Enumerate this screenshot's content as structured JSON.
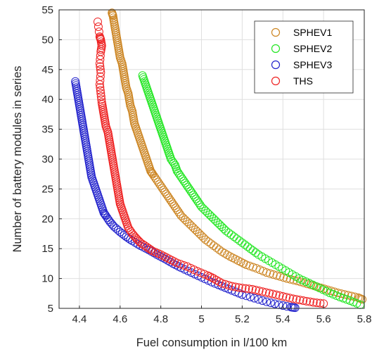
{
  "chart_data": {
    "type": "scatter",
    "title": "",
    "xlabel": "Fuel consumption in l/100 km",
    "ylabel": "Number of battery modules in series",
    "xlim": [
      4.3,
      5.8
    ],
    "ylim": [
      5,
      55
    ],
    "xticks": [
      4.4,
      4.6,
      4.8,
      5,
      5.2,
      5.4,
      5.6,
      5.8
    ],
    "xtick_labels": [
      "4.4",
      "4.6",
      "4.8",
      "5",
      "5.2",
      "5.4",
      "5.6",
      "5.8"
    ],
    "yticks": [
      5,
      10,
      15,
      20,
      25,
      30,
      35,
      40,
      45,
      50,
      55
    ],
    "ytick_labels": [
      "5",
      "10",
      "15",
      "20",
      "25",
      "30",
      "35",
      "40",
      "45",
      "50",
      "55"
    ],
    "grid": true,
    "legend_position": "top-right",
    "marker": "open-circle",
    "series": [
      {
        "name": "SPHEV1",
        "color": "#cc8522",
        "points": [
          [
            4.56,
            54.5
          ],
          [
            4.565,
            54
          ],
          [
            4.57,
            53
          ],
          [
            4.575,
            52
          ],
          [
            4.58,
            51
          ],
          [
            4.585,
            50
          ],
          [
            4.59,
            49
          ],
          [
            4.595,
            48
          ],
          [
            4.6,
            47
          ],
          [
            4.61,
            46
          ],
          [
            4.615,
            45
          ],
          [
            4.62,
            44
          ],
          [
            4.625,
            43
          ],
          [
            4.63,
            42
          ],
          [
            4.64,
            41
          ],
          [
            4.645,
            40
          ],
          [
            4.65,
            39
          ],
          [
            4.66,
            38
          ],
          [
            4.665,
            37
          ],
          [
            4.67,
            36
          ],
          [
            4.68,
            35
          ],
          [
            4.69,
            34
          ],
          [
            4.7,
            33
          ],
          [
            4.71,
            32
          ],
          [
            4.72,
            31
          ],
          [
            4.73,
            30
          ],
          [
            4.74,
            29
          ],
          [
            4.75,
            28
          ],
          [
            4.76,
            27.5
          ],
          [
            4.78,
            26.5
          ],
          [
            4.8,
            25.5
          ],
          [
            4.82,
            24.5
          ],
          [
            4.84,
            23.5
          ],
          [
            4.86,
            22.5
          ],
          [
            4.88,
            21.5
          ],
          [
            4.9,
            20.5
          ],
          [
            4.93,
            19.5
          ],
          [
            4.96,
            18.5
          ],
          [
            4.99,
            17.5
          ],
          [
            5.02,
            16.5
          ],
          [
            5.06,
            15.5
          ],
          [
            5.1,
            14.5
          ],
          [
            5.14,
            13.7
          ],
          [
            5.18,
            13
          ],
          [
            5.22,
            12.3
          ],
          [
            5.27,
            11.7
          ],
          [
            5.32,
            11
          ],
          [
            5.37,
            10.5
          ],
          [
            5.42,
            10
          ],
          [
            5.47,
            9.6
          ],
          [
            5.52,
            9.1
          ],
          [
            5.57,
            8.6
          ],
          [
            5.62,
            8.1
          ],
          [
            5.67,
            7.6
          ],
          [
            5.72,
            7.2
          ],
          [
            5.77,
            6.8
          ],
          [
            5.79,
            6.5
          ]
        ]
      },
      {
        "name": "SPHEV2",
        "color": "#22e622",
        "points": [
          [
            4.71,
            44
          ],
          [
            4.72,
            43
          ],
          [
            4.73,
            42
          ],
          [
            4.74,
            41
          ],
          [
            4.75,
            40
          ],
          [
            4.76,
            39
          ],
          [
            4.77,
            38
          ],
          [
            4.78,
            37
          ],
          [
            4.79,
            36
          ],
          [
            4.8,
            35
          ],
          [
            4.81,
            34
          ],
          [
            4.82,
            33
          ],
          [
            4.83,
            32
          ],
          [
            4.84,
            31
          ],
          [
            4.85,
            30
          ],
          [
            4.87,
            29
          ],
          [
            4.88,
            28
          ],
          [
            4.9,
            27
          ],
          [
            4.92,
            26
          ],
          [
            4.94,
            25
          ],
          [
            4.96,
            24
          ],
          [
            4.98,
            23
          ],
          [
            5,
            22
          ],
          [
            5.03,
            21
          ],
          [
            5.06,
            20
          ],
          [
            5.09,
            19
          ],
          [
            5.12,
            18
          ],
          [
            5.16,
            17
          ],
          [
            5.2,
            16
          ],
          [
            5.24,
            15
          ],
          [
            5.28,
            14
          ],
          [
            5.33,
            13
          ],
          [
            5.38,
            12
          ],
          [
            5.43,
            11
          ],
          [
            5.48,
            10
          ],
          [
            5.53,
            9.2
          ],
          [
            5.58,
            8.4
          ],
          [
            5.63,
            7.6
          ],
          [
            5.68,
            6.9
          ],
          [
            5.73,
            6.3
          ],
          [
            5.78,
            5.6
          ]
        ]
      },
      {
        "name": "SPHEV3",
        "color": "#2222cc",
        "points": [
          [
            4.38,
            43
          ],
          [
            4.385,
            42
          ],
          [
            4.39,
            41
          ],
          [
            4.395,
            40
          ],
          [
            4.4,
            39
          ],
          [
            4.405,
            38
          ],
          [
            4.41,
            37
          ],
          [
            4.415,
            36
          ],
          [
            4.42,
            35
          ],
          [
            4.425,
            34
          ],
          [
            4.43,
            33
          ],
          [
            4.435,
            32
          ],
          [
            4.44,
            31
          ],
          [
            4.445,
            30
          ],
          [
            4.45,
            29
          ],
          [
            4.455,
            28
          ],
          [
            4.46,
            27
          ],
          [
            4.47,
            26
          ],
          [
            4.48,
            25
          ],
          [
            4.49,
            24
          ],
          [
            4.5,
            23
          ],
          [
            4.51,
            22
          ],
          [
            4.52,
            21
          ],
          [
            4.53,
            20.5
          ],
          [
            4.55,
            19.5
          ],
          [
            4.57,
            18.7
          ],
          [
            4.6,
            17.8
          ],
          [
            4.63,
            17
          ],
          [
            4.66,
            16.3
          ],
          [
            4.7,
            15.5
          ],
          [
            4.74,
            14.8
          ],
          [
            4.78,
            14
          ],
          [
            4.82,
            13.3
          ],
          [
            4.86,
            12.5
          ],
          [
            4.9,
            11.8
          ],
          [
            4.95,
            11
          ],
          [
            5,
            10.2
          ],
          [
            5.05,
            9.4
          ],
          [
            5.1,
            8.7
          ],
          [
            5.15,
            8
          ],
          [
            5.2,
            7.3
          ],
          [
            5.26,
            6.7
          ],
          [
            5.32,
            6.1
          ],
          [
            5.38,
            5.6
          ],
          [
            5.44,
            5.2
          ],
          [
            5.46,
            5.1
          ]
        ]
      },
      {
        "name": "THS",
        "color": "#ee2222",
        "points": [
          [
            4.49,
            53
          ],
          [
            4.5,
            50.5
          ],
          [
            4.505,
            50
          ],
          [
            4.51,
            49
          ],
          [
            4.505,
            48
          ],
          [
            4.5,
            46
          ],
          [
            4.505,
            44.5
          ],
          [
            4.5,
            42.5
          ],
          [
            4.505,
            41
          ],
          [
            4.51,
            39.5
          ],
          [
            4.515,
            38.5
          ],
          [
            4.52,
            37.5
          ],
          [
            4.525,
            36.5
          ],
          [
            4.53,
            35.5
          ],
          [
            4.54,
            34.5
          ],
          [
            4.545,
            33.5
          ],
          [
            4.55,
            32.5
          ],
          [
            4.555,
            31.5
          ],
          [
            4.56,
            30.5
          ],
          [
            4.565,
            29.5
          ],
          [
            4.57,
            28.5
          ],
          [
            4.575,
            27.5
          ],
          [
            4.58,
            26.5
          ],
          [
            4.585,
            25.5
          ],
          [
            4.59,
            24.5
          ],
          [
            4.595,
            23.5
          ],
          [
            4.6,
            22.5
          ],
          [
            4.61,
            21.5
          ],
          [
            4.62,
            20.5
          ],
          [
            4.63,
            19.5
          ],
          [
            4.64,
            18.5
          ],
          [
            4.66,
            17.5
          ],
          [
            4.68,
            16.7
          ],
          [
            4.7,
            16
          ],
          [
            4.73,
            15.3
          ],
          [
            4.76,
            14.6
          ],
          [
            4.8,
            14
          ],
          [
            4.84,
            13.3
          ],
          [
            4.88,
            12.6
          ],
          [
            4.93,
            12
          ],
          [
            4.98,
            11.2
          ],
          [
            5.03,
            10.5
          ],
          [
            5.06,
            10
          ],
          [
            5.1,
            9.2
          ],
          [
            5.15,
            8.7
          ],
          [
            5.2,
            8.4
          ],
          [
            5.25,
            8.2
          ],
          [
            5.3,
            7.8
          ],
          [
            5.35,
            7.4
          ],
          [
            5.4,
            7
          ],
          [
            5.45,
            6.6
          ],
          [
            5.5,
            6.3
          ],
          [
            5.55,
            6
          ],
          [
            5.6,
            5.8
          ]
        ]
      }
    ]
  }
}
